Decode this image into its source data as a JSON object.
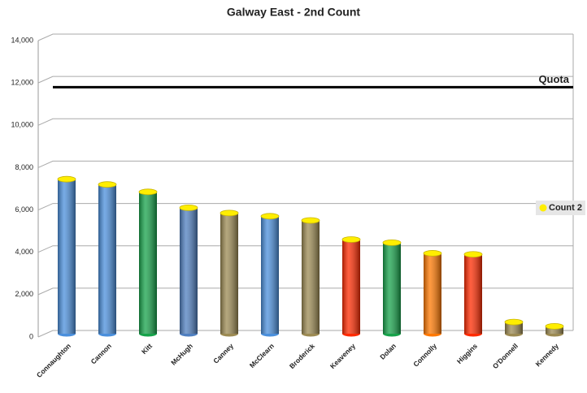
{
  "chart_data": {
    "type": "bar",
    "title": "Galway East - 2nd Count",
    "categories": [
      "Connaughton",
      "Cannon",
      "Kitt",
      "McHugh",
      "Canney",
      "McClearn",
      "Broderick",
      "Keaveney",
      "Dolan",
      "Connolly",
      "Higgins",
      "O'Donnell",
      "Kennedy"
    ],
    "series": [
      {
        "name": "Count 2",
        "color": "#ffee00",
        "values": [
          7300,
          7050,
          6700,
          5950,
          5700,
          5550,
          5350,
          4450,
          4300,
          3800,
          3750,
          550,
          350
        ],
        "colors": [
          "#4a8fdc",
          "#4a8fdc",
          "#16a34a",
          "#4f7fc0",
          "#9c8a52",
          "#4a8fdc",
          "#9c8a52",
          "#ff2a00",
          "#16a34a",
          "#ff7800",
          "#ff2a00",
          "#9c8a52",
          "#9c8a52"
        ]
      }
    ],
    "quota": {
      "label": "Quota",
      "value": 11800
    },
    "ylim": [
      0,
      14000
    ],
    "yticks": [
      0,
      {
        "value": 2000,
        "label": "2,000"
      },
      {
        "value": 4000,
        "label": "4,000"
      },
      {
        "value": 6000,
        "label": "6,000"
      },
      {
        "value": 8000,
        "label": "8,000"
      },
      {
        "value": 10000,
        "label": "10,000"
      },
      {
        "value": 12000,
        "label": "12,000"
      },
      {
        "value": 14000,
        "label": "14,000"
      }
    ],
    "grid": true,
    "legend": "right"
  }
}
